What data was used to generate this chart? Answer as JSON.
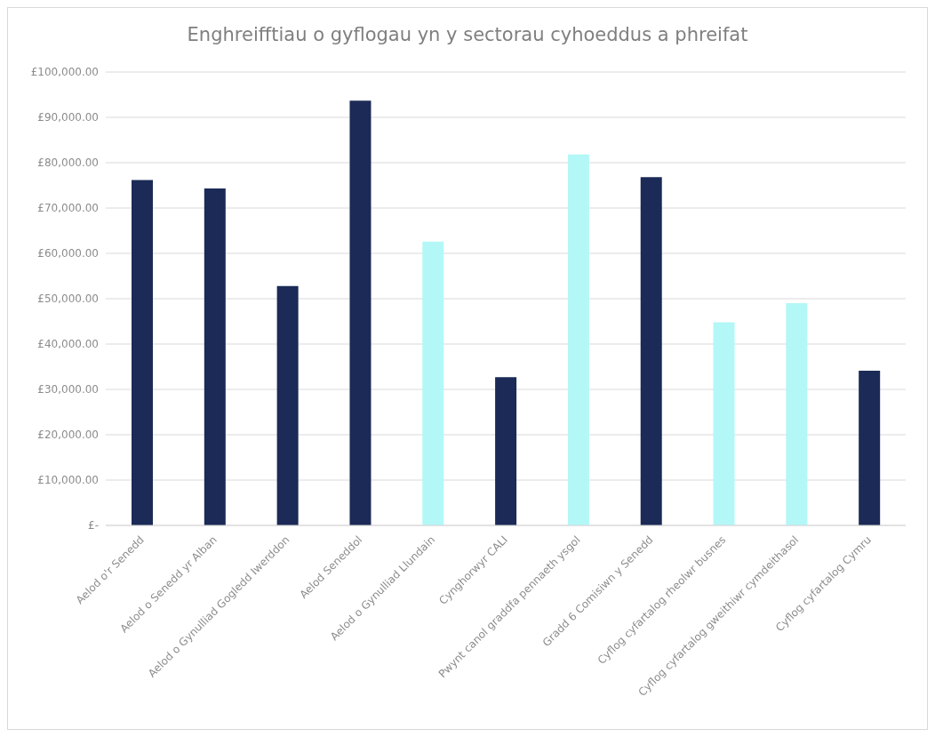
{
  "chart_data": {
    "type": "bar",
    "title": "Enghreifftiau o gyflogau yn y sectorau cyhoeddus a phreifat",
    "categories": [
      "Aelod o'r Senedd",
      "Aelod o Senedd yr Alban",
      "Aelod o Gynulliad Gogledd Iwerddon",
      "Aelod Seneddol",
      "Aelod o Gynulliad Llundain",
      "Cynghorwyr CALI",
      "Pwynt canol graddfa pennaeth ysgol",
      "Gradd 6 Comisiwn y Senedd",
      "Cyflog cyfartalog rheolwr busnes",
      "Cyflog cyfartalog gweithiwr cymdeithasol",
      "Cyflog cyfartalog Cymru"
    ],
    "values": [
      76200,
      74300,
      52800,
      93700,
      62600,
      32700,
      81800,
      76800,
      44800,
      49000,
      34100
    ],
    "colors": [
      "#1b2a56",
      "#1b2a56",
      "#1b2a56",
      "#1b2a56",
      "#b3f7f7",
      "#1b2a56",
      "#b3f7f7",
      "#1b2a56",
      "#b3f7f7",
      "#b3f7f7",
      "#1b2a56"
    ],
    "ylim": [
      0,
      100000
    ],
    "yticks": [
      {
        "value": 0,
        "label": "£-"
      },
      {
        "value": 10000,
        "label": "£10,000.00"
      },
      {
        "value": 20000,
        "label": "£20,000.00"
      },
      {
        "value": 30000,
        "label": "£30,000.00"
      },
      {
        "value": 40000,
        "label": "£40,000.00"
      },
      {
        "value": 50000,
        "label": "£50,000.00"
      },
      {
        "value": 60000,
        "label": "£60,000.00"
      },
      {
        "value": 70000,
        "label": "£70,000.00"
      },
      {
        "value": 80000,
        "label": "£80,000.00"
      },
      {
        "value": 90000,
        "label": "£90,000.00"
      },
      {
        "value": 100000,
        "label": "£100,000.00"
      }
    ],
    "grid": "y"
  }
}
